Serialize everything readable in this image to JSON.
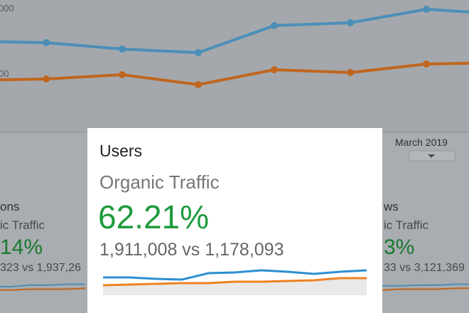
{
  "background_chart": {
    "y_labels": [
      "000",
      "00"
    ],
    "x_label": "March 2019",
    "ylim": [
      0,
      185
    ],
    "series": [
      {
        "color": "#4b8fb8",
        "values": [
          127,
          125,
          116,
          111,
          149,
          153,
          172,
          165
        ]
      },
      {
        "color": "#c0661f",
        "values": [
          72,
          74,
          80,
          66,
          87,
          83,
          95,
          97
        ]
      }
    ]
  },
  "left_panel": {
    "title": "ons",
    "subtitle": "ic Traffic",
    "change": "14%",
    "comparison": "323 vs 1,937,26",
    "ylim": [
      0,
      12
    ],
    "series": [
      {
        "color": "#4b8fb8",
        "values": [
          6,
          6,
          8,
          8,
          9,
          9
        ]
      },
      {
        "color": "#c0661f",
        "values": [
          2,
          2,
          3,
          3,
          3,
          4
        ]
      }
    ]
  },
  "right_panel": {
    "title": "ws",
    "subtitle": "ic Traffic",
    "change": "3%",
    "comparison": "33 vs 3,121,369",
    "ylim": [
      0,
      12
    ],
    "series": [
      {
        "color": "#4b8fb8",
        "values": [
          7,
          7,
          8,
          8,
          9,
          9
        ]
      },
      {
        "color": "#c0661f",
        "values": [
          2,
          3,
          3,
          3,
          4,
          4
        ]
      }
    ]
  },
  "card": {
    "title": "Users",
    "subtitle": "Organic Traffic",
    "change": "62.21%",
    "comparison": "1,911,008 vs 1,178,093",
    "ylim": [
      0,
      40
    ],
    "series": [
      {
        "color": "#2d8fd0",
        "values": [
          25,
          25,
          23,
          22,
          31,
          32,
          35,
          33,
          30,
          33,
          35
        ]
      },
      {
        "color": "#ee8222",
        "values": [
          14,
          15,
          16,
          17,
          17,
          19,
          19,
          20,
          21,
          24,
          24
        ]
      }
    ]
  }
}
